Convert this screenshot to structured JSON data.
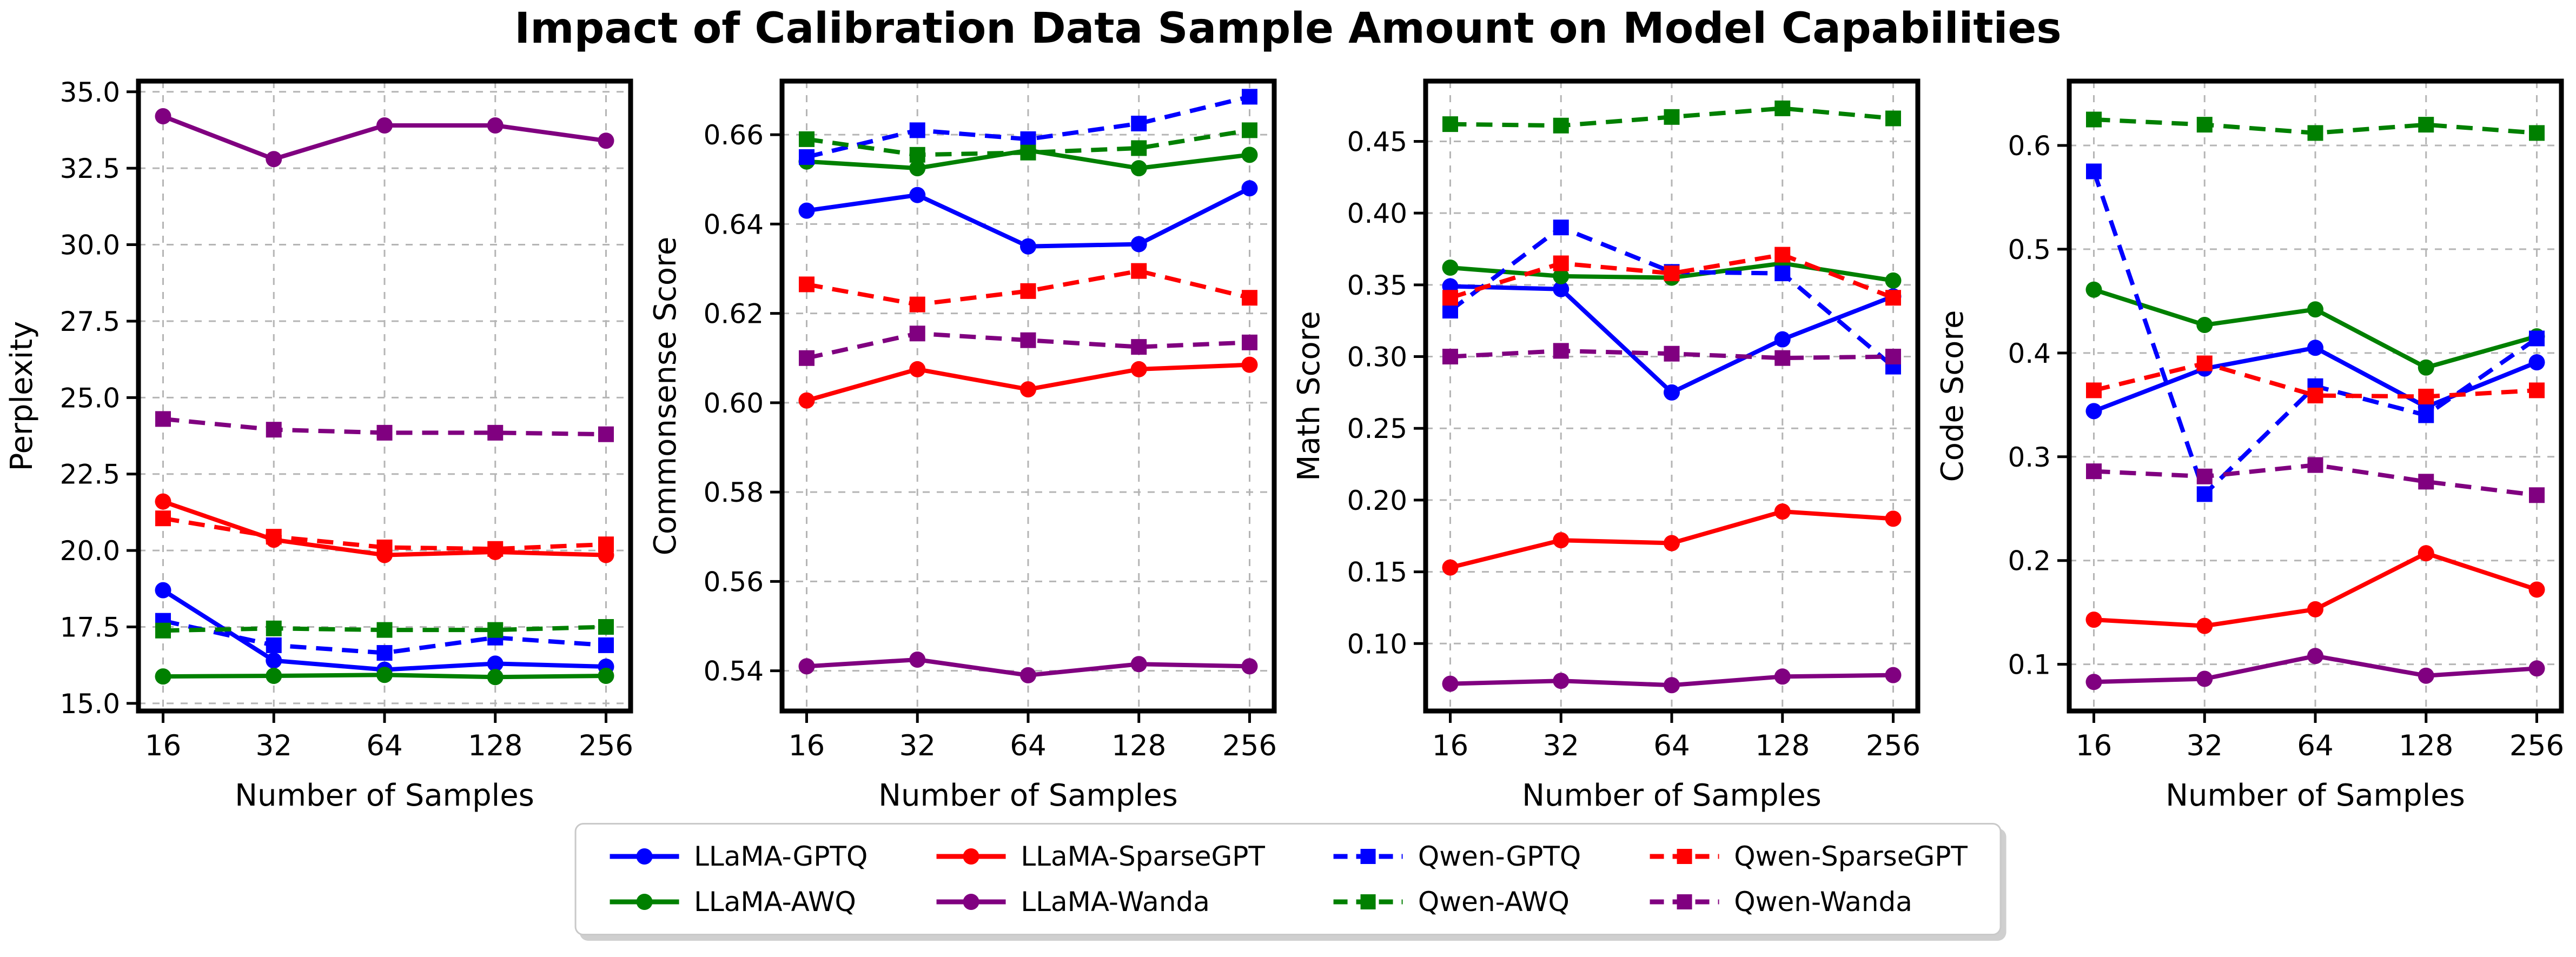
{
  "title": "Impact of Calibration Data Sample Amount on Model Capabilities",
  "x_axis_label": "Number of Samples",
  "x_categories": [
    "16",
    "32",
    "64",
    "128",
    "256"
  ],
  "accent_colors": {
    "blue": "#0000ff",
    "green": "#008000",
    "red": "#ff0000",
    "purple": "#800080",
    "grid": "#b5b5b5",
    "legend_border": "#c9c9c9"
  },
  "legend": {
    "entries": [
      {
        "label": "LLaMA-GPTQ",
        "color": "#0000ff",
        "line": "solid",
        "marker": "circle"
      },
      {
        "label": "LLaMA-SparseGPT",
        "color": "#ff0000",
        "line": "solid",
        "marker": "circle"
      },
      {
        "label": "Qwen-GPTQ",
        "color": "#0000ff",
        "line": "dashed",
        "marker": "square"
      },
      {
        "label": "Qwen-SparseGPT",
        "color": "#ff0000",
        "line": "dashed",
        "marker": "square"
      },
      {
        "label": "LLaMA-AWQ",
        "color": "#008000",
        "line": "solid",
        "marker": "circle"
      },
      {
        "label": "LLaMA-Wanda",
        "color": "#800080",
        "line": "solid",
        "marker": "circle"
      },
      {
        "label": "Qwen-AWQ",
        "color": "#008000",
        "line": "dashed",
        "marker": "square"
      },
      {
        "label": "Qwen-Wanda",
        "color": "#800080",
        "line": "dashed",
        "marker": "square"
      }
    ]
  },
  "chart_data": [
    {
      "type": "line",
      "ylabel": "Perplexity",
      "xlabel": "Number of Samples",
      "x": [
        16,
        32,
        64,
        128,
        256
      ],
      "ylim": [
        14.75,
        35.35
      ],
      "ytick_values": [
        15.0,
        17.5,
        20.0,
        22.5,
        25.0,
        27.5,
        30.0,
        32.5,
        35.0
      ],
      "ytick_labels": [
        "15.0",
        "17.5",
        "20.0",
        "22.5",
        "25.0",
        "27.5",
        "30.0",
        "32.5",
        "35.0"
      ],
      "grid": true,
      "series": [
        {
          "name": "LLaMA-GPTQ",
          "color": "#0000ff",
          "line": "solid",
          "marker": "circle",
          "values": [
            18.7,
            16.4,
            16.1,
            16.3,
            16.2
          ]
        },
        {
          "name": "LLaMA-AWQ",
          "color": "#008000",
          "line": "solid",
          "marker": "circle",
          "values": [
            15.88,
            15.9,
            15.93,
            15.86,
            15.9
          ]
        },
        {
          "name": "LLaMA-SparseGPT",
          "color": "#ff0000",
          "line": "solid",
          "marker": "circle",
          "values": [
            21.6,
            20.35,
            19.85,
            19.95,
            19.85
          ]
        },
        {
          "name": "LLaMA-Wanda",
          "color": "#800080",
          "line": "solid",
          "marker": "circle",
          "values": [
            34.2,
            32.8,
            33.9,
            33.9,
            33.4
          ]
        },
        {
          "name": "Qwen-GPTQ",
          "color": "#0000ff",
          "line": "dashed",
          "marker": "square",
          "values": [
            17.7,
            16.9,
            16.65,
            17.15,
            16.9
          ]
        },
        {
          "name": "Qwen-AWQ",
          "color": "#008000",
          "line": "dashed",
          "marker": "square",
          "values": [
            17.38,
            17.45,
            17.4,
            17.4,
            17.5
          ]
        },
        {
          "name": "Qwen-SparseGPT",
          "color": "#ff0000",
          "line": "dashed",
          "marker": "square",
          "values": [
            21.05,
            20.45,
            20.1,
            20.05,
            20.2
          ]
        },
        {
          "name": "Qwen-Wanda",
          "color": "#800080",
          "line": "dashed",
          "marker": "square",
          "values": [
            24.3,
            23.95,
            23.85,
            23.85,
            23.8
          ]
        }
      ]
    },
    {
      "type": "line",
      "ylabel": "Commonsense Score",
      "xlabel": "Number of Samples",
      "x": [
        16,
        32,
        64,
        128,
        256
      ],
      "ylim": [
        0.531,
        0.672
      ],
      "ytick_values": [
        0.54,
        0.56,
        0.58,
        0.6,
        0.62,
        0.64,
        0.66
      ],
      "ytick_labels": [
        "0.54",
        "0.56",
        "0.58",
        "0.60",
        "0.62",
        "0.64",
        "0.66"
      ],
      "grid": true,
      "series": [
        {
          "name": "LLaMA-GPTQ",
          "color": "#0000ff",
          "line": "solid",
          "marker": "circle",
          "values": [
            0.643,
            0.6465,
            0.635,
            0.6355,
            0.648
          ]
        },
        {
          "name": "LLaMA-AWQ",
          "color": "#008000",
          "line": "solid",
          "marker": "circle",
          "values": [
            0.654,
            0.6525,
            0.6565,
            0.6525,
            0.6555
          ]
        },
        {
          "name": "LLaMA-SparseGPT",
          "color": "#ff0000",
          "line": "solid",
          "marker": "circle",
          "values": [
            0.6005,
            0.6075,
            0.603,
            0.6075,
            0.6085
          ]
        },
        {
          "name": "LLaMA-Wanda",
          "color": "#800080",
          "line": "solid",
          "marker": "circle",
          "values": [
            0.541,
            0.5425,
            0.539,
            0.5415,
            0.541
          ]
        },
        {
          "name": "Qwen-GPTQ",
          "color": "#0000ff",
          "line": "dashed",
          "marker": "square",
          "values": [
            0.655,
            0.661,
            0.659,
            0.6625,
            0.6685
          ]
        },
        {
          "name": "Qwen-AWQ",
          "color": "#008000",
          "line": "dashed",
          "marker": "square",
          "values": [
            0.659,
            0.6555,
            0.656,
            0.657,
            0.661
          ]
        },
        {
          "name": "Qwen-SparseGPT",
          "color": "#ff0000",
          "line": "dashed",
          "marker": "square",
          "values": [
            0.6265,
            0.622,
            0.625,
            0.6295,
            0.6235
          ]
        },
        {
          "name": "Qwen-Wanda",
          "color": "#800080",
          "line": "dashed",
          "marker": "square",
          "values": [
            0.61,
            0.6155,
            0.614,
            0.6125,
            0.6135
          ]
        }
      ]
    },
    {
      "type": "line",
      "ylabel": "Math Score",
      "xlabel": "Number of Samples",
      "x": [
        16,
        32,
        64,
        128,
        256
      ],
      "ylim": [
        0.053,
        0.492
      ],
      "ytick_values": [
        0.1,
        0.15,
        0.2,
        0.25,
        0.3,
        0.35,
        0.4,
        0.45
      ],
      "ytick_labels": [
        "0.10",
        "0.15",
        "0.20",
        "0.25",
        "0.30",
        "0.35",
        "0.40",
        "0.45"
      ],
      "grid": true,
      "series": [
        {
          "name": "LLaMA-GPTQ",
          "color": "#0000ff",
          "line": "solid",
          "marker": "circle",
          "values": [
            0.349,
            0.347,
            0.275,
            0.312,
            0.342
          ]
        },
        {
          "name": "LLaMA-AWQ",
          "color": "#008000",
          "line": "solid",
          "marker": "circle",
          "values": [
            0.362,
            0.356,
            0.355,
            0.365,
            0.353
          ]
        },
        {
          "name": "LLaMA-SparseGPT",
          "color": "#ff0000",
          "line": "solid",
          "marker": "circle",
          "values": [
            0.153,
            0.172,
            0.17,
            0.192,
            0.187
          ]
        },
        {
          "name": "LLaMA-Wanda",
          "color": "#800080",
          "line": "solid",
          "marker": "circle",
          "values": [
            0.072,
            0.074,
            0.071,
            0.077,
            0.078
          ]
        },
        {
          "name": "Qwen-GPTQ",
          "color": "#0000ff",
          "line": "dashed",
          "marker": "square",
          "values": [
            0.332,
            0.39,
            0.359,
            0.358,
            0.293
          ]
        },
        {
          "name": "Qwen-AWQ",
          "color": "#008000",
          "line": "dashed",
          "marker": "square",
          "values": [
            0.462,
            0.461,
            0.467,
            0.473,
            0.466
          ]
        },
        {
          "name": "Qwen-SparseGPT",
          "color": "#ff0000",
          "line": "dashed",
          "marker": "square",
          "values": [
            0.341,
            0.365,
            0.358,
            0.371,
            0.341
          ]
        },
        {
          "name": "Qwen-Wanda",
          "color": "#800080",
          "line": "dashed",
          "marker": "square",
          "values": [
            0.3,
            0.304,
            0.302,
            0.299,
            0.3
          ]
        }
      ]
    },
    {
      "type": "line",
      "ylabel": "Code Score",
      "xlabel": "Number of Samples",
      "x": [
        16,
        32,
        64,
        128,
        256
      ],
      "ylim": [
        0.055,
        0.662
      ],
      "ytick_values": [
        0.1,
        0.2,
        0.3,
        0.4,
        0.5,
        0.6
      ],
      "ytick_labels": [
        "0.1",
        "0.2",
        "0.3",
        "0.4",
        "0.5",
        "0.6"
      ],
      "grid": true,
      "series": [
        {
          "name": "LLaMA-GPTQ",
          "color": "#0000ff",
          "line": "solid",
          "marker": "circle",
          "values": [
            0.344,
            0.385,
            0.405,
            0.348,
            0.391
          ]
        },
        {
          "name": "LLaMA-AWQ",
          "color": "#008000",
          "line": "solid",
          "marker": "circle",
          "values": [
            0.461,
            0.427,
            0.442,
            0.386,
            0.416
          ]
        },
        {
          "name": "LLaMA-SparseGPT",
          "color": "#ff0000",
          "line": "solid",
          "marker": "circle",
          "values": [
            0.143,
            0.137,
            0.153,
            0.207,
            0.172
          ]
        },
        {
          "name": "LLaMA-Wanda",
          "color": "#800080",
          "line": "solid",
          "marker": "circle",
          "values": [
            0.083,
            0.086,
            0.108,
            0.089,
            0.096
          ]
        },
        {
          "name": "Qwen-GPTQ",
          "color": "#0000ff",
          "line": "dashed",
          "marker": "square",
          "values": [
            0.575,
            0.264,
            0.368,
            0.34,
            0.414
          ]
        },
        {
          "name": "Qwen-AWQ",
          "color": "#008000",
          "line": "dashed",
          "marker": "square",
          "values": [
            0.625,
            0.62,
            0.612,
            0.62,
            0.612
          ]
        },
        {
          "name": "Qwen-SparseGPT",
          "color": "#ff0000",
          "line": "dashed",
          "marker": "square",
          "values": [
            0.364,
            0.39,
            0.359,
            0.358,
            0.364
          ]
        },
        {
          "name": "Qwen-Wanda",
          "color": "#800080",
          "line": "dashed",
          "marker": "square",
          "values": [
            0.286,
            0.281,
            0.292,
            0.276,
            0.263
          ]
        }
      ]
    }
  ]
}
